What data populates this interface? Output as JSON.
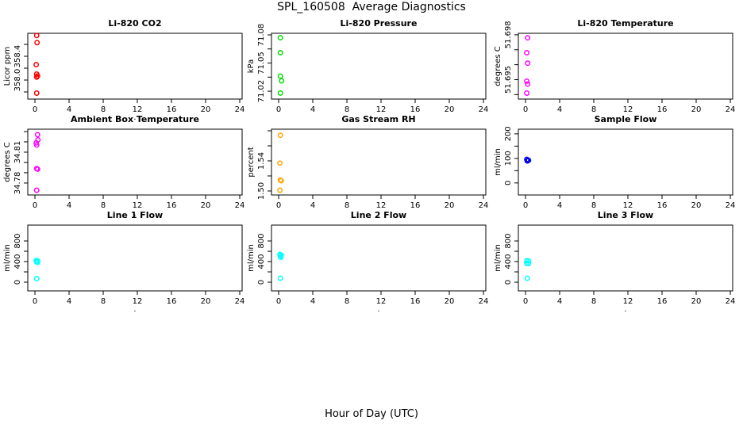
{
  "main_title": "SPL_160508  Average Diagnostics",
  "xlabel": "Hour of Day (UTC)",
  "chart_data": {
    "type": "scatter",
    "layout": "3x3-grid",
    "title": "SPL_160508  Average Diagnostics",
    "xlabel": "Hour of Day (UTC)",
    "marker": "open-circle",
    "grid": false,
    "x_ticks": [
      0,
      4,
      8,
      12,
      16,
      20,
      24
    ],
    "x_tick_labels": [
      "0",
      "4",
      "8",
      "12",
      "16",
      "20",
      "24"
    ],
    "xlim": [
      -0.84,
      24.28
    ],
    "axis_sub_label": ".",
    "panels": [
      {
        "id": "li820-co2",
        "title": "Li-820 CO2",
        "ylabel": "Licor ppm",
        "color": "#FF0000",
        "ylim": [
          357.68,
          358.787
        ],
        "yticks": [
          {
            "v": 357.8,
            "label": ""
          },
          {
            "v": 358.0,
            "label": "358.0"
          },
          {
            "v": 358.2,
            "label": ""
          },
          {
            "v": 358.4,
            "label": "358.4"
          },
          {
            "v": 358.6,
            "label": ""
          }
        ],
        "points": [
          [
            0.2,
            358.75
          ],
          [
            0.25,
            358.63
          ],
          [
            0.15,
            358.26
          ],
          [
            0.2,
            358.1
          ],
          [
            0.3,
            358.07
          ],
          [
            0.2,
            358.05
          ],
          [
            0.2,
            357.78
          ]
        ]
      },
      {
        "id": "li820-pressure",
        "title": "Li-820 Pressure",
        "ylabel": "kPa",
        "color": "#00DD00",
        "ylim": [
          71.0116,
          71.0817
        ],
        "yticks": [
          {
            "v": 71.02,
            "label": "71.02"
          },
          {
            "v": 71.035,
            "label": ""
          },
          {
            "v": 71.05,
            "label": "71.05"
          },
          {
            "v": 71.065,
            "label": ""
          },
          {
            "v": 71.08,
            "label": "71.08"
          }
        ],
        "points": [
          [
            0.2,
            71.077
          ],
          [
            0.2,
            71.061
          ],
          [
            0.2,
            71.036
          ],
          [
            0.35,
            71.031
          ],
          [
            0.2,
            71.018
          ]
        ]
      },
      {
        "id": "li820-temperature",
        "title": "Li-820 Temperature",
        "ylabel": "degrees C",
        "color": "#FF00FF",
        "ylim": [
          51.6937,
          51.6981
        ],
        "yticks": [
          {
            "v": 51.694,
            "label": ""
          },
          {
            "v": 51.695,
            "label": "51.695"
          },
          {
            "v": 51.696,
            "label": ""
          },
          {
            "v": 51.697,
            "label": ""
          },
          {
            "v": 51.698,
            "label": "51.698"
          }
        ],
        "points": [
          [
            0.25,
            51.6978
          ],
          [
            0.15,
            51.6968
          ],
          [
            0.25,
            51.6961
          ],
          [
            0.15,
            51.6949
          ],
          [
            0.25,
            51.6947
          ],
          [
            0.15,
            51.6941
          ]
        ]
      },
      {
        "id": "ambient-box-temperature",
        "title": "Ambient Box Temperature",
        "ylabel": "degrees C",
        "color": "#FF00FF",
        "ylim": [
          34.7684,
          34.8323
        ],
        "yticks": [
          {
            "v": 34.78,
            "label": "34.78"
          },
          {
            "v": 34.79,
            "label": ""
          },
          {
            "v": 34.8,
            "label": ""
          },
          {
            "v": 34.81,
            "label": "34.81"
          },
          {
            "v": 34.82,
            "label": ""
          },
          {
            "v": 34.83,
            "label": ""
          }
        ],
        "points": [
          [
            0.3,
            34.827
          ],
          [
            0.35,
            34.822
          ],
          [
            0.15,
            34.819
          ],
          [
            0.2,
            34.817
          ],
          [
            0.2,
            34.794
          ],
          [
            0.3,
            34.7935
          ],
          [
            0.2,
            34.773
          ]
        ]
      },
      {
        "id": "gas-stream-rh",
        "title": "Gas Stream RH",
        "ylabel": "percent",
        "color": "#FFA500",
        "ylim": [
          1.4947,
          1.5821
        ],
        "yticks": [
          {
            "v": 1.5,
            "label": "1.50"
          },
          {
            "v": 1.52,
            "label": ""
          },
          {
            "v": 1.54,
            "label": "1.54"
          },
          {
            "v": 1.56,
            "label": ""
          },
          {
            "v": 1.58,
            "label": ""
          }
        ],
        "points": [
          [
            0.2,
            1.574
          ],
          [
            0.15,
            1.537
          ],
          [
            0.2,
            1.5145
          ],
          [
            0.3,
            1.5135
          ],
          [
            0.15,
            1.501
          ]
        ]
      },
      {
        "id": "sample-flow",
        "title": "Sample Flow",
        "ylabel": "ml/min",
        "color": "#0000EE",
        "ylim": [
          -49,
          219
        ],
        "yticks": [
          {
            "v": 0,
            "label": "0"
          },
          {
            "v": 50,
            "label": ""
          },
          {
            "v": 100,
            "label": "100"
          },
          {
            "v": 150,
            "label": ""
          },
          {
            "v": 200,
            "label": "200"
          }
        ],
        "points": [
          [
            0.15,
            96
          ],
          [
            0.3,
            93
          ],
          [
            0.2,
            90
          ],
          [
            0.35,
            92
          ]
        ]
      },
      {
        "id": "line1-flow",
        "title": "Line 1 Flow",
        "ylabel": "ml/min",
        "color": "#00FFFF",
        "ylim": [
          -169,
          1108
        ],
        "yticks": [
          {
            "v": 0,
            "label": "0"
          },
          {
            "v": 200,
            "label": ""
          },
          {
            "v": 400,
            "label": "400"
          },
          {
            "v": 600,
            "label": ""
          },
          {
            "v": 800,
            "label": "800"
          }
        ],
        "points": [
          [
            0.15,
            420
          ],
          [
            0.3,
            412
          ],
          [
            0.2,
            395
          ],
          [
            0.3,
            385
          ],
          [
            0.2,
            70
          ]
        ]
      },
      {
        "id": "line2-flow",
        "title": "Line 2 Flow",
        "ylabel": "ml/min",
        "color": "#00FFFF",
        "ylim": [
          -169,
          1108
        ],
        "yticks": [
          {
            "v": 0,
            "label": "0"
          },
          {
            "v": 200,
            "label": ""
          },
          {
            "v": 400,
            "label": "400"
          },
          {
            "v": 600,
            "label": ""
          },
          {
            "v": 800,
            "label": "800"
          }
        ],
        "points": [
          [
            0.15,
            540
          ],
          [
            0.3,
            525
          ],
          [
            0.2,
            500
          ],
          [
            0.25,
            485
          ],
          [
            0.2,
            77
          ]
        ]
      },
      {
        "id": "line3-flow",
        "title": "Line 3 Flow",
        "ylabel": "ml/min",
        "color": "#00FFFF",
        "ylim": [
          -169,
          1108
        ],
        "yticks": [
          {
            "v": 0,
            "label": "0"
          },
          {
            "v": 200,
            "label": ""
          },
          {
            "v": 400,
            "label": "400"
          },
          {
            "v": 600,
            "label": ""
          },
          {
            "v": 800,
            "label": "800"
          }
        ],
        "points": [
          [
            0.15,
            415
          ],
          [
            0.35,
            412
          ],
          [
            0.15,
            365
          ],
          [
            0.35,
            362
          ],
          [
            0.2,
            75
          ]
        ]
      }
    ]
  }
}
